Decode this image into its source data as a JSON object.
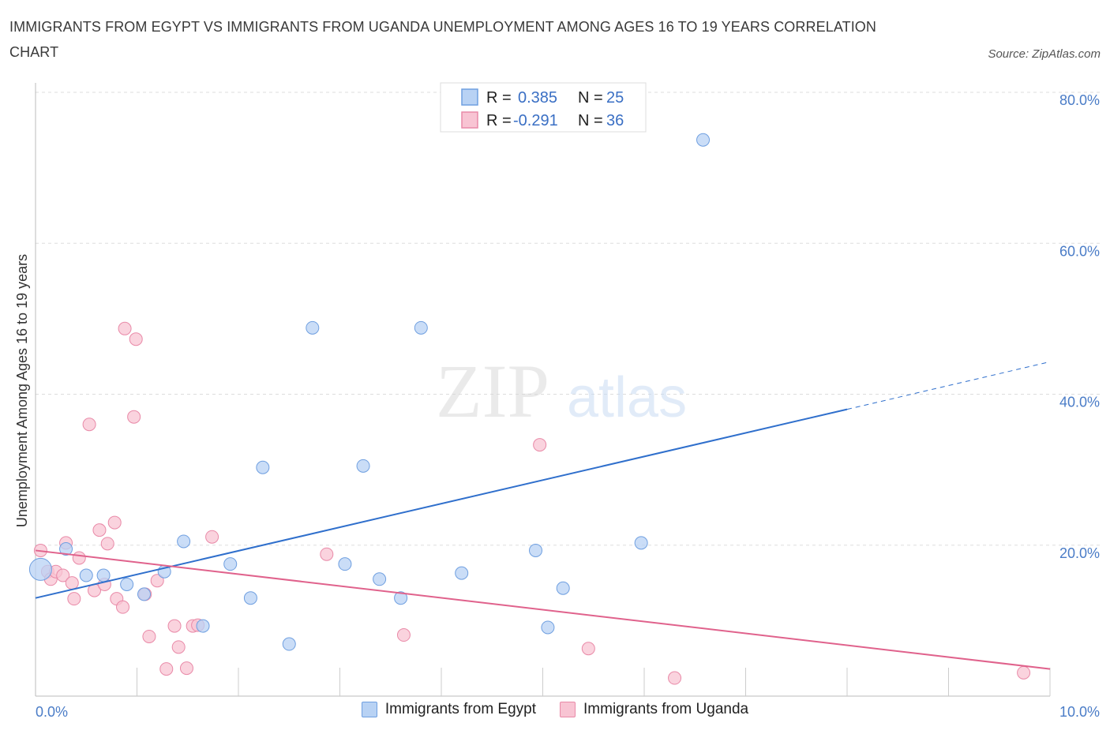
{
  "title": "IMMIGRANTS FROM EGYPT VS IMMIGRANTS FROM UGANDA UNEMPLOYMENT AMONG AGES 16 TO 19 YEARS CORRELATION CHART",
  "source": "Source: ZipAtlas.com",
  "watermark": {
    "zip": "ZIP",
    "atlas": "atlas"
  },
  "colors": {
    "egypt_fill": "#b8d2f4",
    "egypt_stroke": "#6f9fe0",
    "egypt_line": "#2f6fcc",
    "uganda_fill": "#f8c4d3",
    "uganda_stroke": "#e98aa8",
    "uganda_line": "#e0628c",
    "axis_text": "#4a7cc7",
    "grid": "#dddddd"
  },
  "legend_box": {
    "rows": [
      {
        "r_label": "R = ",
        "r_value": "0.385",
        "n_label": "N = ",
        "n_value": "25"
      },
      {
        "r_label": "R = ",
        "r_value": "-0.291",
        "n_label": "N = ",
        "n_value": "36"
      }
    ]
  },
  "bottom_legend": {
    "egypt": "Immigrants from Egypt",
    "uganda": "Immigrants from Uganda"
  },
  "chart_data": {
    "type": "scatter",
    "title": "IMMIGRANTS FROM EGYPT VS IMMIGRANTS FROM UGANDA UNEMPLOYMENT AMONG AGES 16 TO 19 YEARS CORRELATION CHART",
    "xlabel": "",
    "ylabel": "Unemployment Among Ages 16 to 19 years",
    "xlim": [
      0,
      10
    ],
    "ylim": [
      0,
      80
    ],
    "x_tick_labels": [
      "0.0%",
      "10.0%"
    ],
    "y_tick_labels": [
      "20.0%",
      "40.0%",
      "60.0%",
      "80.0%"
    ],
    "y_ticks": [
      20,
      40,
      60,
      80
    ],
    "grid": true,
    "legend_placement": "top-center",
    "series": [
      {
        "name": "Immigrants from Egypt",
        "color": "#6f9fe0",
        "points": [
          [
            0.05,
            16.8
          ],
          [
            0.3,
            19.5
          ],
          [
            0.5,
            16.0
          ],
          [
            0.67,
            16.0
          ],
          [
            0.9,
            14.8
          ],
          [
            1.07,
            13.5
          ],
          [
            1.27,
            16.5
          ],
          [
            1.46,
            20.5
          ],
          [
            1.65,
            9.3
          ],
          [
            1.92,
            17.5
          ],
          [
            2.12,
            13.0
          ],
          [
            2.24,
            30.3
          ],
          [
            2.5,
            6.9
          ],
          [
            2.73,
            48.8
          ],
          [
            3.05,
            17.5
          ],
          [
            3.23,
            30.5
          ],
          [
            3.39,
            15.5
          ],
          [
            3.6,
            13.0
          ],
          [
            3.8,
            48.8
          ],
          [
            4.2,
            16.3
          ],
          [
            4.93,
            19.3
          ],
          [
            5.05,
            9.1
          ],
          [
            5.2,
            14.3
          ],
          [
            5.97,
            20.3
          ],
          [
            6.58,
            73.7
          ]
        ],
        "trend": {
          "x": [
            0,
            8.0
          ],
          "y": [
            13.0,
            38.0
          ],
          "dashed_to": [
            10,
            44.3
          ]
        }
      },
      {
        "name": "Immigrants from Uganda",
        "color": "#e98aa8",
        "points": [
          [
            0.05,
            19.3
          ],
          [
            0.12,
            16.5
          ],
          [
            0.15,
            15.5
          ],
          [
            0.2,
            16.5
          ],
          [
            0.27,
            16.0
          ],
          [
            0.3,
            20.3
          ],
          [
            0.36,
            15.0
          ],
          [
            0.38,
            12.9
          ],
          [
            0.43,
            18.3
          ],
          [
            0.53,
            36.0
          ],
          [
            0.58,
            14.0
          ],
          [
            0.63,
            22.0
          ],
          [
            0.68,
            14.8
          ],
          [
            0.71,
            20.2
          ],
          [
            0.78,
            23.0
          ],
          [
            0.8,
            12.9
          ],
          [
            0.86,
            11.8
          ],
          [
            0.88,
            48.7
          ],
          [
            0.97,
            37.0
          ],
          [
            0.99,
            47.3
          ],
          [
            1.08,
            13.5
          ],
          [
            1.12,
            7.9
          ],
          [
            1.2,
            15.3
          ],
          [
            1.29,
            3.6
          ],
          [
            1.37,
            9.3
          ],
          [
            1.41,
            6.5
          ],
          [
            1.49,
            3.7
          ],
          [
            1.55,
            9.3
          ],
          [
            1.74,
            21.1
          ],
          [
            2.87,
            18.8
          ],
          [
            3.63,
            8.1
          ],
          [
            4.97,
            33.3
          ],
          [
            5.45,
            6.3
          ],
          [
            6.3,
            2.4
          ],
          [
            9.74,
            3.1
          ],
          [
            1.6,
            9.4
          ]
        ],
        "trend": {
          "x": [
            0,
            10
          ],
          "y": [
            19.3,
            3.6
          ]
        }
      }
    ]
  }
}
